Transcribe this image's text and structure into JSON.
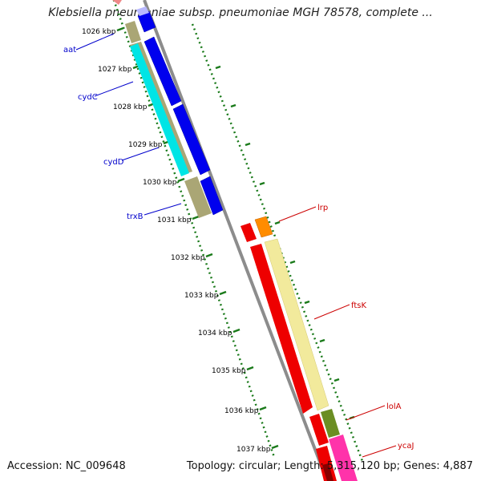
{
  "title": "Klebsiella pneumoniae subsp. pneumoniae MGH 78578, complete ...",
  "footer": {
    "accession": "Accession: NC_009648",
    "topology": "Topology: circular; Length: 5,315,120 bp; Genes: 4,887"
  },
  "colors": {
    "backbone": "#8c8c8c",
    "ticks": "#1a7a1a",
    "left_labels": "#0000cc",
    "right_labels": "#cc0000"
  },
  "ticks": [
    {
      "label": "1026 kbp"
    },
    {
      "label": "1027 kbp"
    },
    {
      "label": "1028 kbp"
    },
    {
      "label": "1029 kbp"
    },
    {
      "label": "1030 kbp"
    },
    {
      "label": "1031 kbp"
    },
    {
      "label": "1032 kbp"
    },
    {
      "label": "1033 kbp"
    },
    {
      "label": "1034 kbp"
    },
    {
      "label": "1035 kbp"
    },
    {
      "label": "1036 kbp"
    },
    {
      "label": "1037 kbp"
    }
  ],
  "left_genes": [
    {
      "name": "aat"
    },
    {
      "name": "cydC"
    },
    {
      "name": "cydD"
    },
    {
      "name": "trxB"
    }
  ],
  "right_genes": [
    {
      "name": "lrp"
    },
    {
      "name": "ftsK"
    },
    {
      "name": "lolA"
    },
    {
      "name": "ycaJ"
    }
  ]
}
